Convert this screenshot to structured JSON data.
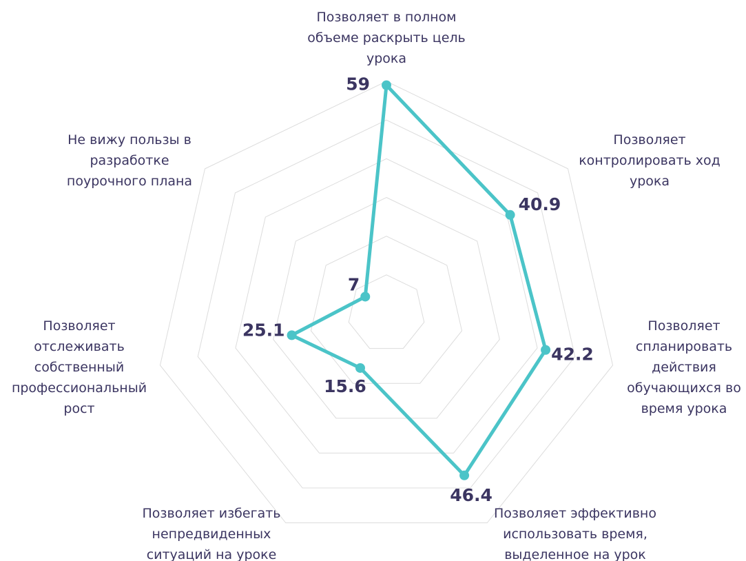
{
  "chart_data": {
    "type": "radar",
    "categories": [
      "Позволяет в полном объеме раскрыть цель урока",
      "Позволяет контролировать ход урока",
      "Позволяет спланировать действия обучающихся во время урока",
      "Позволяет эффективно использовать время, выделенное на урок",
      "Позволяет избегать непредвиденных ситуаций на уроке",
      "Позволяет отслеживать собственный профессиональный рост",
      "Не вижу пользы в разработке поурочного плана"
    ],
    "values": [
      59,
      40.9,
      42.2,
      46.4,
      15.6,
      25.1,
      7
    ],
    "color": "#4bc4c8",
    "ylim": [
      0,
      60
    ],
    "yticks": [
      0,
      10,
      20,
      30,
      40,
      50,
      60
    ],
    "grid": true
  }
}
